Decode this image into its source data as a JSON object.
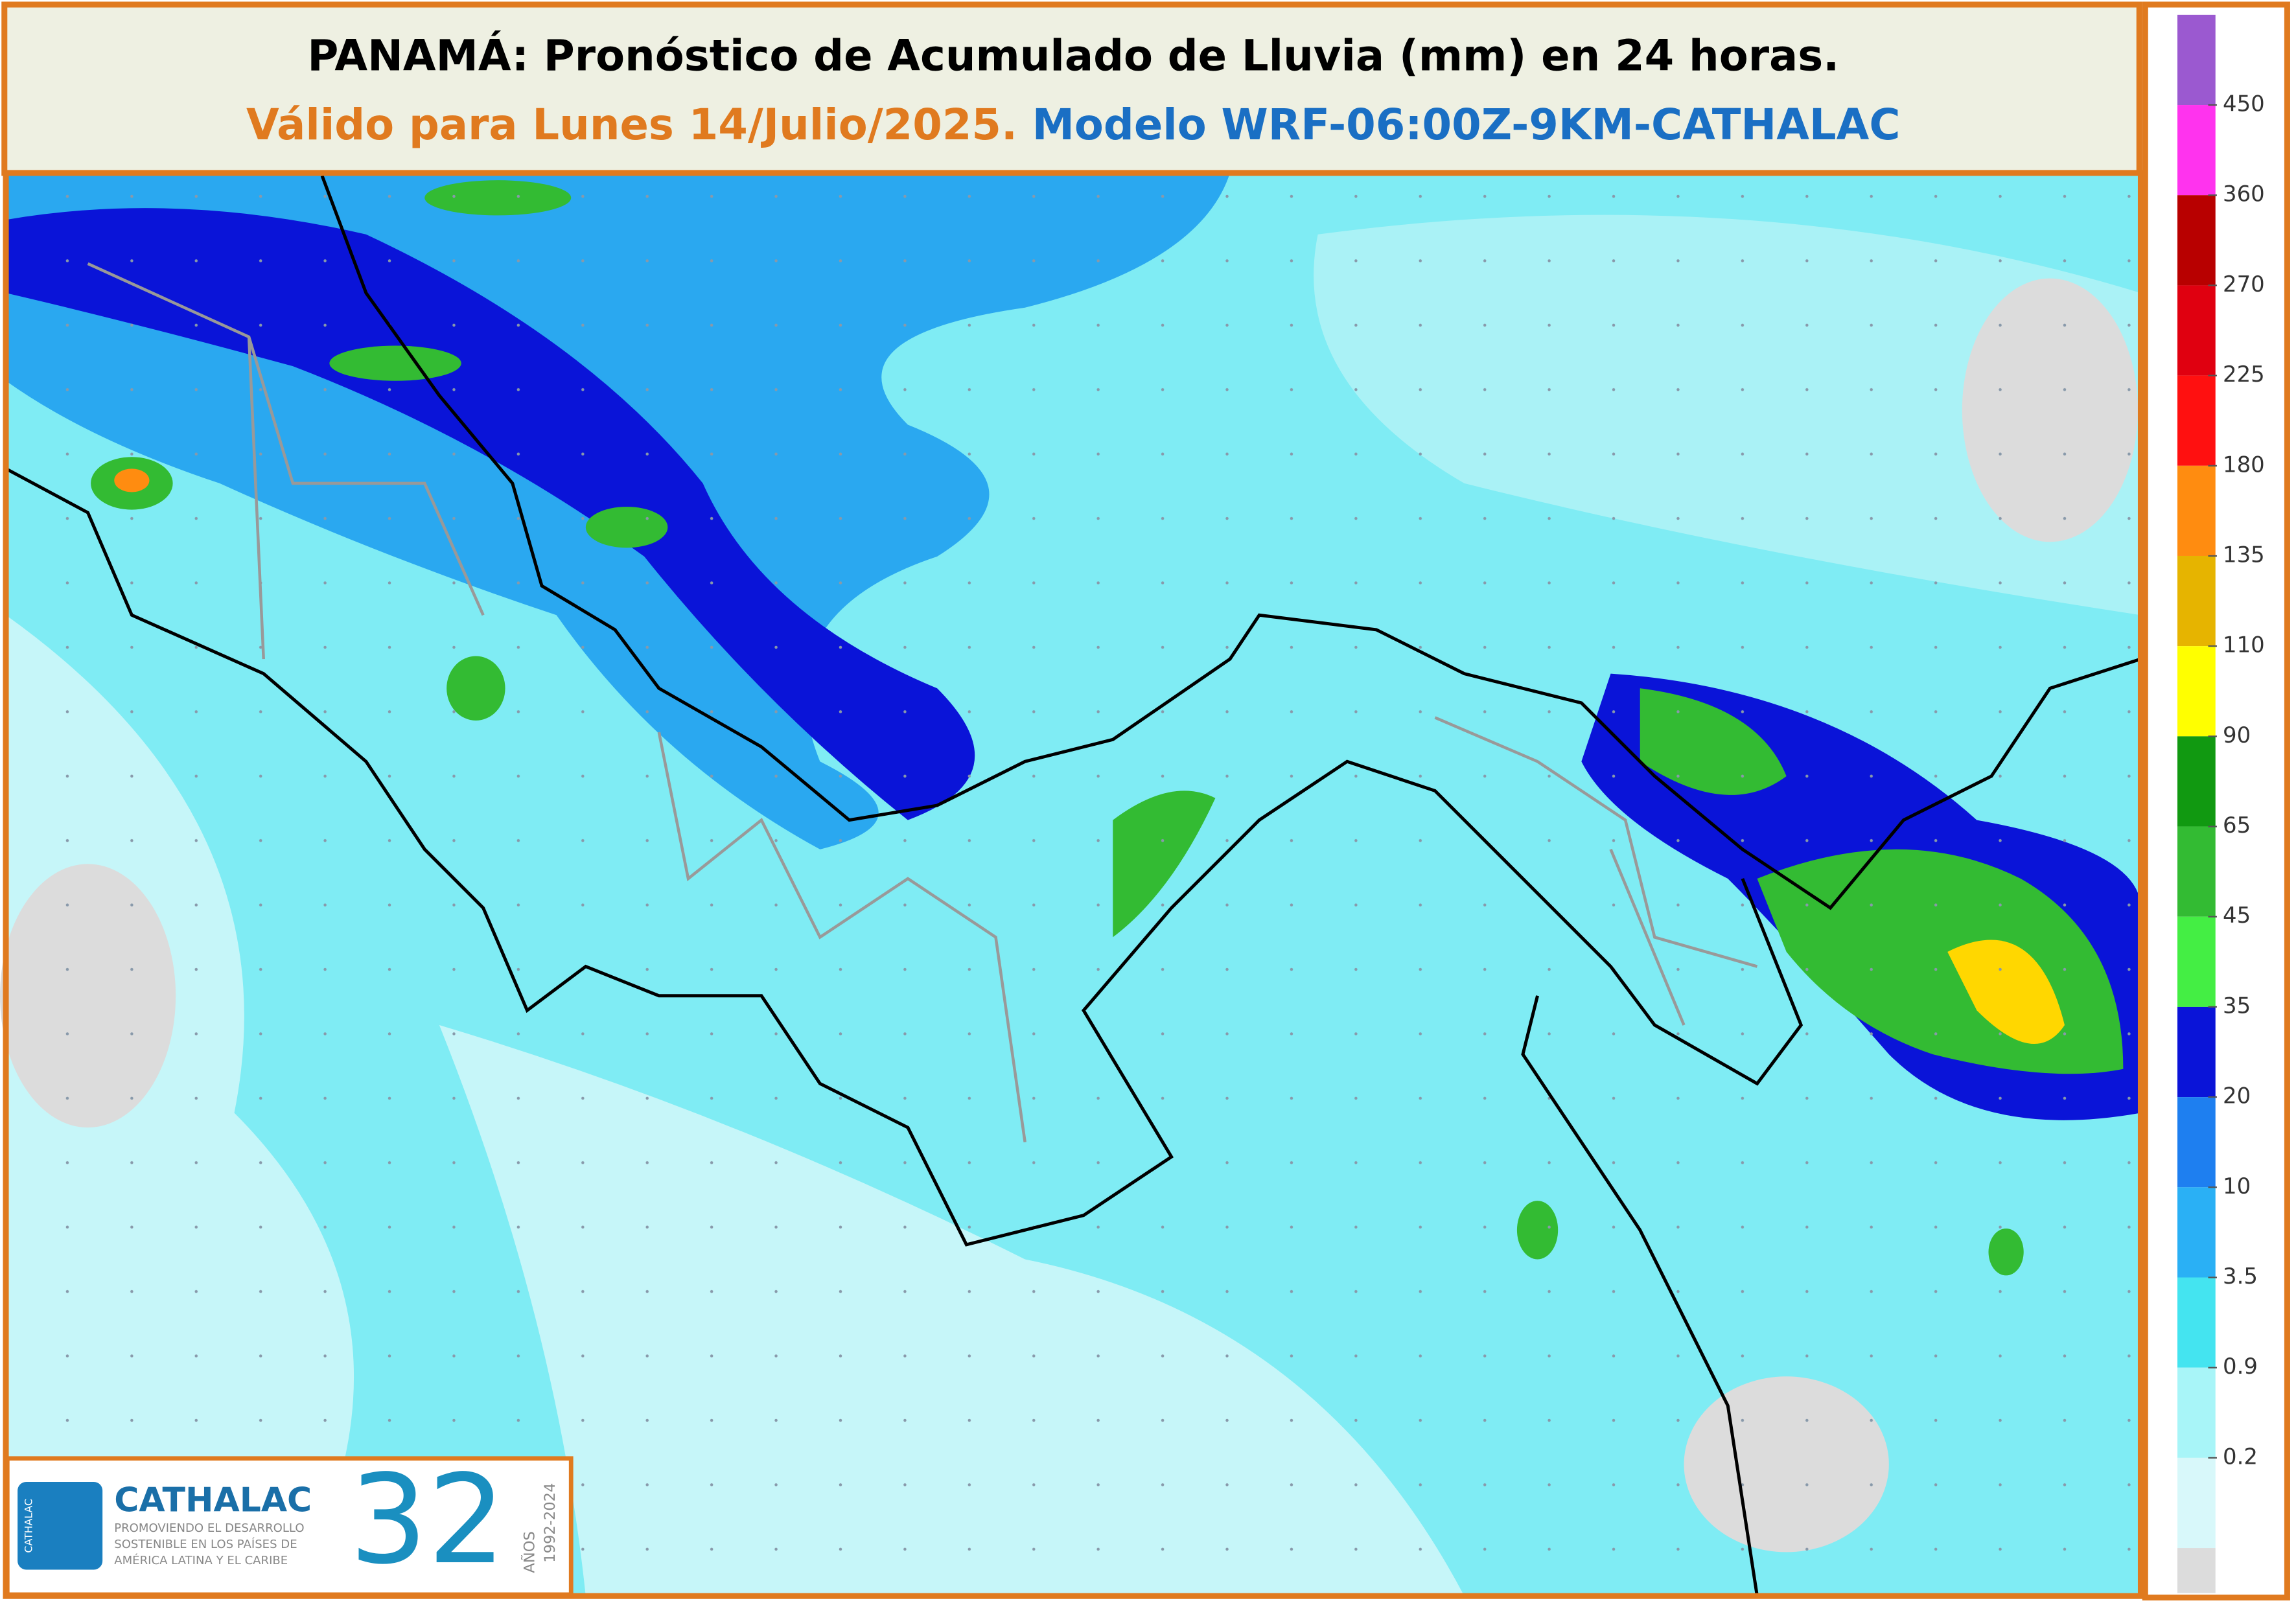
{
  "header": {
    "title": "PANAMÁ: Pronóstico de Acumulado de Lluvia (mm) en 24 horas.",
    "valid": "Válido para Lunes 14/Julio/2025.",
    "model": "Modelo WRF-06:00Z-9KM-CATHALAC"
  },
  "legend": {
    "colors": [
      "#9b59d0",
      "#ff33ee",
      "#b80000",
      "#e00010",
      "#ff1010",
      "#ff8c10",
      "#e6b400",
      "#ffff00",
      "#119911",
      "#33bb33",
      "#44ee44",
      "#0a14d8",
      "#1e7ff0",
      "#2ab0f5",
      "#44e4f0",
      "#a8f5f8",
      "#d8f8fa",
      "#dcdcdc"
    ],
    "labels": [
      "450",
      "360",
      "270",
      "225",
      "180",
      "135",
      "110",
      "90",
      "65",
      "45",
      "35",
      "20",
      "10",
      "3.5",
      "0.9",
      "0.2"
    ]
  },
  "logo": {
    "side": "CATHALAC",
    "name": "CATHALAC",
    "tagline": [
      "PROMOVIENDO EL DESARROLLO",
      "SOSTENIBLE EN LOS PAÍSES DE",
      "AMÉRICA LATINA Y EL CARIBE"
    ],
    "number": "32",
    "years_word": "AÑOS",
    "years": "1992-2024"
  }
}
